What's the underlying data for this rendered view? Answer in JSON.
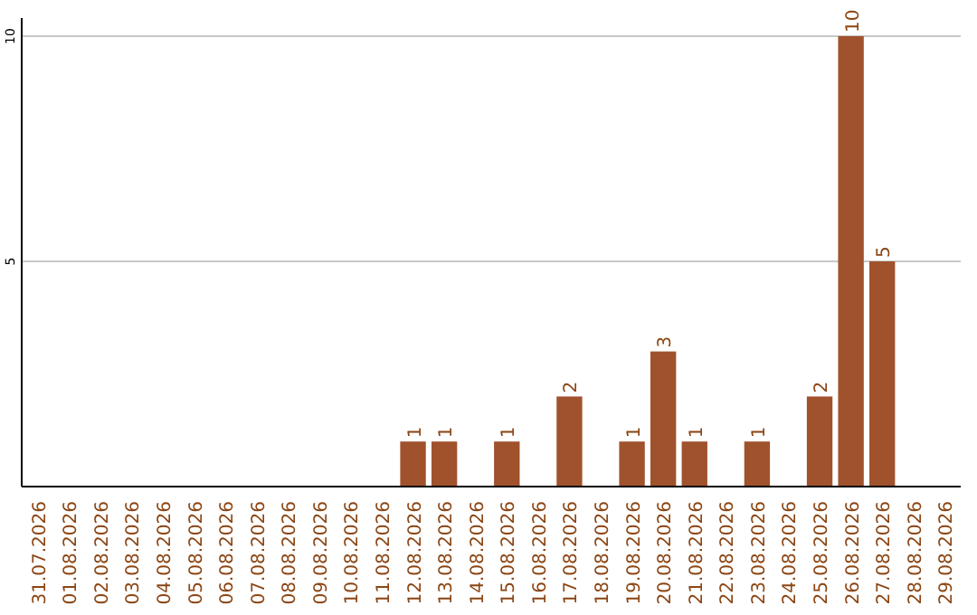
{
  "chart_data": {
    "type": "bar",
    "categories": [
      "31.07.2026",
      "01.08.2026",
      "02.08.2026",
      "03.08.2026",
      "04.08.2026",
      "05.08.2026",
      "06.08.2026",
      "07.08.2026",
      "08.08.2026",
      "09.08.2026",
      "10.08.2026",
      "11.08.2026",
      "12.08.2026",
      "13.08.2026",
      "14.08.2026",
      "15.08.2026",
      "16.08.2026",
      "17.08.2026",
      "18.08.2026",
      "19.08.2026",
      "20.08.2026",
      "21.08.2026",
      "22.08.2026",
      "23.08.2026",
      "24.08.2026",
      "25.08.2026",
      "26.08.2026",
      "27.08.2026",
      "28.08.2026",
      "29.08.2026"
    ],
    "values": [
      0,
      0,
      0,
      0,
      0,
      0,
      0,
      0,
      0,
      0,
      0,
      0,
      1,
      1,
      0,
      1,
      0,
      2,
      0,
      1,
      3,
      1,
      0,
      1,
      0,
      2,
      10,
      5,
      0,
      0
    ],
    "value_labels": [
      null,
      null,
      null,
      null,
      null,
      null,
      null,
      null,
      null,
      null,
      null,
      null,
      "1",
      "1",
      null,
      "1",
      null,
      "2",
      null,
      "1",
      "3",
      "1",
      null,
      "1",
      null,
      "2",
      "10",
      "5",
      null,
      null
    ],
    "color": "#a0522d",
    "ylim": [
      0,
      10
    ],
    "yticks": [
      5,
      10
    ],
    "grid": "y"
  }
}
